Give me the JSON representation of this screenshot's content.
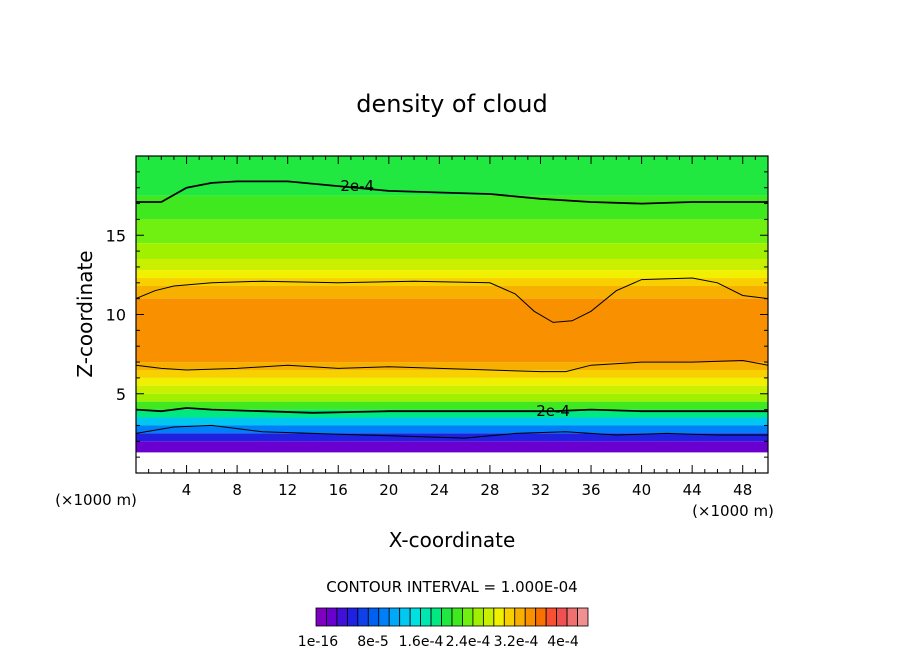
{
  "chart_data": {
    "type": "heatmap",
    "title": "density of cloud",
    "xlabel": "X-coordinate",
    "ylabel": "Z-coordinate",
    "x_unit": "(×1000 m)",
    "y_unit": "(×1000 m)",
    "xlim": [
      0,
      50
    ],
    "ylim": [
      0,
      20
    ],
    "x_ticks": [
      4,
      8,
      12,
      16,
      20,
      24,
      28,
      32,
      36,
      40,
      44,
      48
    ],
    "y_ticks": [
      5,
      10,
      15
    ],
    "contour_interval_label": "CONTOUR INTERVAL = 1.000E-04",
    "contour_labels": [
      {
        "text": "2e-4",
        "x": 17.5,
        "z": 18.1
      },
      {
        "text": "2e-4",
        "x": 33.0,
        "z": 3.9
      }
    ],
    "colorbar": {
      "labels": [
        "1e-16",
        "8e-5",
        "1.6e-4",
        "2.4e-4",
        "3.2e-4",
        "4e-4"
      ],
      "colors": [
        "#8000c0",
        "#6a00d0",
        "#4010d8",
        "#2020e0",
        "#1040e8",
        "#0060f0",
        "#0080f8",
        "#00a8f8",
        "#00c8f0",
        "#00e0e0",
        "#00e8b0",
        "#00e880",
        "#20e840",
        "#40e820",
        "#70f010",
        "#a0f000",
        "#c8f000",
        "#f0f000",
        "#f8d000",
        "#f8b000",
        "#f89000",
        "#f87000",
        "#f85030",
        "#f05050",
        "#f07070",
        "#f09090"
      ]
    },
    "bands": [
      {
        "z0": 17.5,
        "z1": 20.0,
        "color": "#20e840"
      },
      {
        "z0": 16.0,
        "z1": 17.5,
        "color": "#40e820"
      },
      {
        "z0": 14.5,
        "z1": 16.0,
        "color": "#70f010"
      },
      {
        "z0": 13.5,
        "z1": 14.5,
        "color": "#a0f000"
      },
      {
        "z0": 12.8,
        "z1": 13.5,
        "color": "#c8f000"
      },
      {
        "z0": 12.3,
        "z1": 12.8,
        "color": "#f0f000"
      },
      {
        "z0": 11.8,
        "z1": 12.3,
        "color": "#f8d000"
      },
      {
        "z0": 11.0,
        "z1": 11.8,
        "color": "#f8b000"
      },
      {
        "z0": 7.0,
        "z1": 11.0,
        "color": "#f89000"
      },
      {
        "z0": 6.5,
        "z1": 7.0,
        "color": "#f8b000"
      },
      {
        "z0": 6.0,
        "z1": 6.5,
        "color": "#f8d000"
      },
      {
        "z0": 5.5,
        "z1": 6.0,
        "color": "#f0f000"
      },
      {
        "z0": 5.0,
        "z1": 5.5,
        "color": "#c8f000"
      },
      {
        "z0": 4.5,
        "z1": 5.0,
        "color": "#a0f000"
      },
      {
        "z0": 4.0,
        "z1": 4.5,
        "color": "#40e820"
      },
      {
        "z0": 3.5,
        "z1": 4.0,
        "color": "#00e880"
      },
      {
        "z0": 3.0,
        "z1": 3.5,
        "color": "#00c8f0"
      },
      {
        "z0": 2.5,
        "z1": 3.0,
        "color": "#0080f8"
      },
      {
        "z0": 2.0,
        "z1": 2.5,
        "color": "#2020e0"
      },
      {
        "z0": 1.3,
        "z1": 2.0,
        "color": "#6a00d0"
      }
    ],
    "contour_upper": [
      [
        0,
        17.1
      ],
      [
        2,
        17.1
      ],
      [
        4,
        18.0
      ],
      [
        6,
        18.3
      ],
      [
        8,
        18.4
      ],
      [
        12,
        18.4
      ],
      [
        16,
        18.1
      ],
      [
        20,
        17.8
      ],
      [
        24,
        17.7
      ],
      [
        28,
        17.6
      ],
      [
        32,
        17.3
      ],
      [
        36,
        17.1
      ],
      [
        40,
        17.0
      ],
      [
        44,
        17.1
      ],
      [
        48,
        17.1
      ],
      [
        50,
        17.1
      ]
    ],
    "contour_cloud_top": [
      [
        0,
        11.0
      ],
      [
        1.5,
        11.5
      ],
      [
        3,
        11.8
      ],
      [
        6,
        12.0
      ],
      [
        10,
        12.1
      ],
      [
        16,
        12.0
      ],
      [
        22,
        12.1
      ],
      [
        28,
        12.0
      ],
      [
        30,
        11.3
      ],
      [
        31.5,
        10.2
      ],
      [
        33,
        9.5
      ],
      [
        34.5,
        9.6
      ],
      [
        36,
        10.2
      ],
      [
        38,
        11.5
      ],
      [
        40,
        12.2
      ],
      [
        44,
        12.3
      ],
      [
        46,
        12.0
      ],
      [
        48,
        11.2
      ],
      [
        50,
        11.0
      ]
    ],
    "contour_cloud_base": [
      [
        0,
        6.8
      ],
      [
        2,
        6.6
      ],
      [
        4,
        6.5
      ],
      [
        8,
        6.6
      ],
      [
        12,
        6.8
      ],
      [
        16,
        6.6
      ],
      [
        20,
        6.7
      ],
      [
        24,
        6.6
      ],
      [
        28,
        6.5
      ],
      [
        32,
        6.4
      ],
      [
        34,
        6.4
      ],
      [
        36,
        6.8
      ],
      [
        40,
        7.0
      ],
      [
        44,
        7.0
      ],
      [
        48,
        7.1
      ],
      [
        50,
        6.8
      ]
    ],
    "contour_lower": [
      [
        0,
        4.0
      ],
      [
        2,
        3.9
      ],
      [
        4,
        4.1
      ],
      [
        6,
        4.0
      ],
      [
        10,
        3.9
      ],
      [
        14,
        3.8
      ],
      [
        20,
        3.9
      ],
      [
        26,
        3.9
      ],
      [
        30,
        3.9
      ],
      [
        33,
        3.9
      ],
      [
        36,
        4.0
      ],
      [
        40,
        3.9
      ],
      [
        44,
        3.9
      ],
      [
        48,
        3.9
      ],
      [
        50,
        3.9
      ]
    ],
    "contour_base": [
      [
        0,
        2.5
      ],
      [
        3,
        2.9
      ],
      [
        6,
        3.0
      ],
      [
        10,
        2.6
      ],
      [
        14,
        2.5
      ],
      [
        18,
        2.4
      ],
      [
        22,
        2.3
      ],
      [
        26,
        2.2
      ],
      [
        30,
        2.5
      ],
      [
        34,
        2.6
      ],
      [
        38,
        2.4
      ],
      [
        42,
        2.5
      ],
      [
        46,
        2.4
      ],
      [
        50,
        2.4
      ]
    ]
  }
}
